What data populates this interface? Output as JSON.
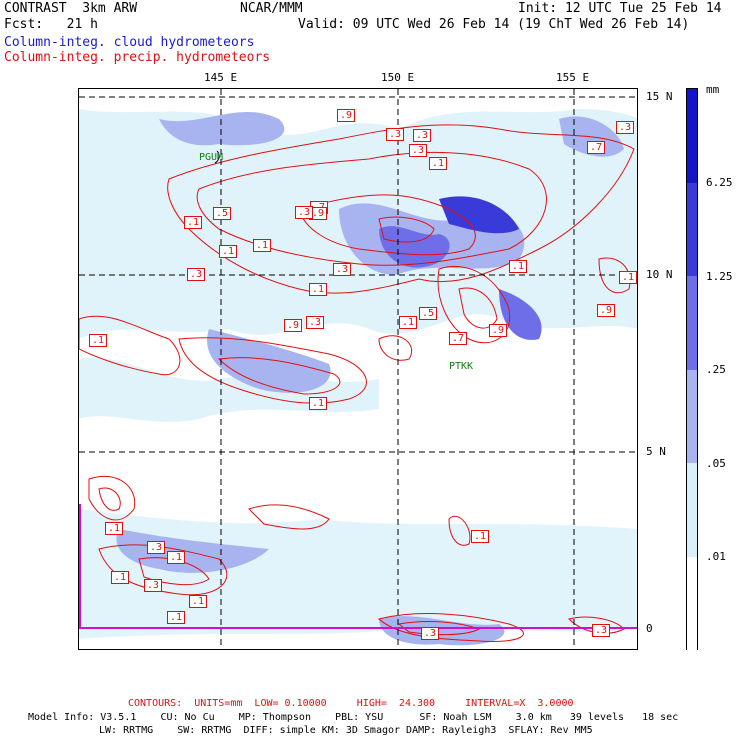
{
  "header": {
    "model": "CONTRAST  3km ARW",
    "center": "NCAR/MMM",
    "init": "Init: 12 UTC Tue 25 Feb 14",
    "fcst": "Fcst:   21 h",
    "valid": "Valid: 09 UTC Wed 26 Feb 14 (19 ChT Wed 26 Feb 14)",
    "field1": "Column-integ. cloud hydrometeors",
    "field2": "Column-integ. precip. hydrometeors"
  },
  "lon_labels": [
    "145 E",
    "150 E",
    "155 E"
  ],
  "lat_labels": [
    "15 N",
    "10 N",
    "5 N",
    "0"
  ],
  "stations": [
    "PGUM",
    "PTKK"
  ],
  "colorbar": {
    "unit": "mm",
    "labels": [
      "6.25",
      "1.25",
      ".25",
      ".05",
      ".01"
    ],
    "colors": [
      "#1515c8",
      "#3a3ad8",
      "#6e6ee8",
      "#a8b4f0",
      "#d8f0fa",
      "#ffffff"
    ]
  },
  "contour_labels": [
    ".1",
    ".9",
    ".3",
    ".5",
    ".7",
    ".9",
    ".1",
    ".3",
    ".1",
    ".3",
    ".1",
    ".9",
    ".1",
    ".3",
    ".1",
    ".3",
    ".1",
    ".5",
    ".7",
    ".9",
    ".1",
    ".3",
    ".1",
    ".7",
    ".3",
    ".1",
    ".9",
    ".1",
    ".3",
    ".1",
    ".1",
    ".3",
    ".1",
    ".1",
    ".3",
    ".1",
    ".3",
    ".3"
  ],
  "footer": {
    "contours": "CONTOURS:  UNITS=mm  LOW= 0.10000     HIGH=  24.300     INTERVAL=X  3.0000",
    "model_info": "Model Info: V3.5.1    CU: No Cu    MP: Thompson    PBL: YSU      SF: Noah LSM    3.0 km   39 levels   18 sec",
    "model_info2": "LW: RRTMG    SW: RRTMG  DIFF: simple KM: 3D Smagor DAMP: Rayleigh3  SFLAY: Rev MM5"
  }
}
